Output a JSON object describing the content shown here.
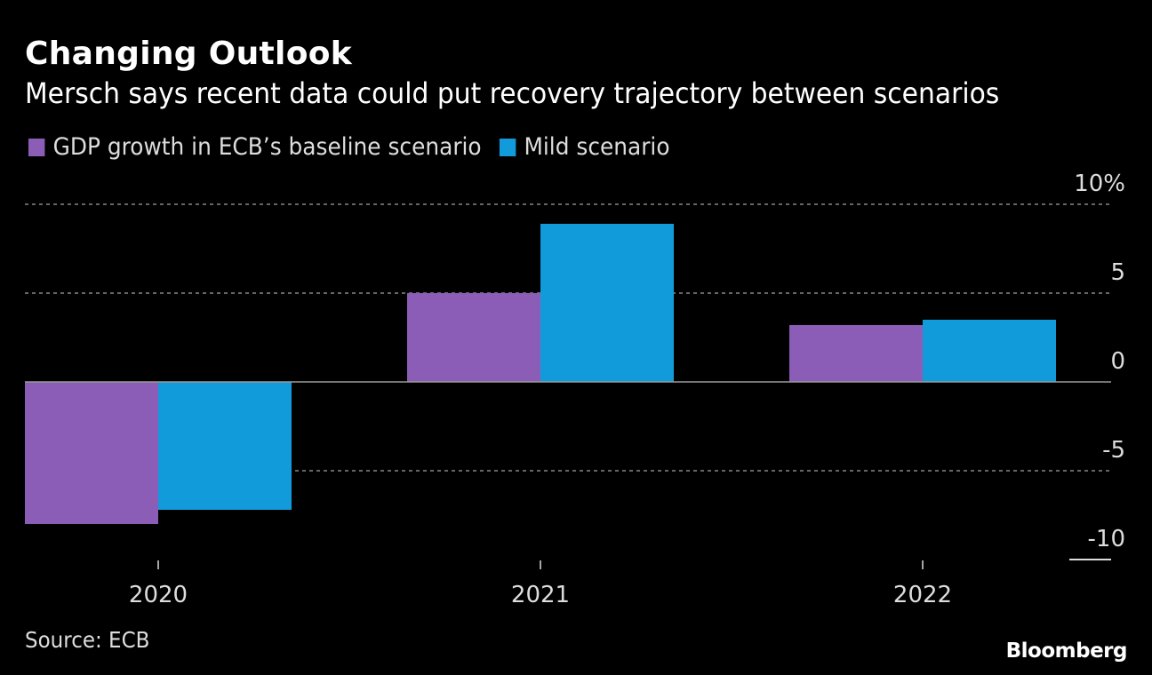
{
  "chart_data": {
    "type": "bar",
    "title": "Changing Outlook",
    "subtitle": "Mersch says recent data could put recovery trajectory between scenarios",
    "categories": [
      "2020",
      "2021",
      "2022"
    ],
    "series": [
      {
        "name": "GDP growth in ECB’s baseline scenario",
        "color": "#8c5db7",
        "values": [
          -8.0,
          5.0,
          3.2
        ]
      },
      {
        "name": "Mild scenario",
        "color": "#129bdb",
        "values": [
          -7.2,
          8.9,
          3.5
        ]
      }
    ],
    "xlabel": "",
    "ylabel": "",
    "ylim": [
      -10,
      10
    ],
    "yticks": [
      10,
      5,
      0,
      -5,
      -10
    ],
    "ytick_labels": [
      "10%",
      "5",
      "0",
      "-5",
      "-10"
    ],
    "grid": true,
    "legend_position": "top-left",
    "y_axis_position": "right"
  },
  "footer": {
    "source": "Source: ECB",
    "brand": "Bloomberg"
  }
}
